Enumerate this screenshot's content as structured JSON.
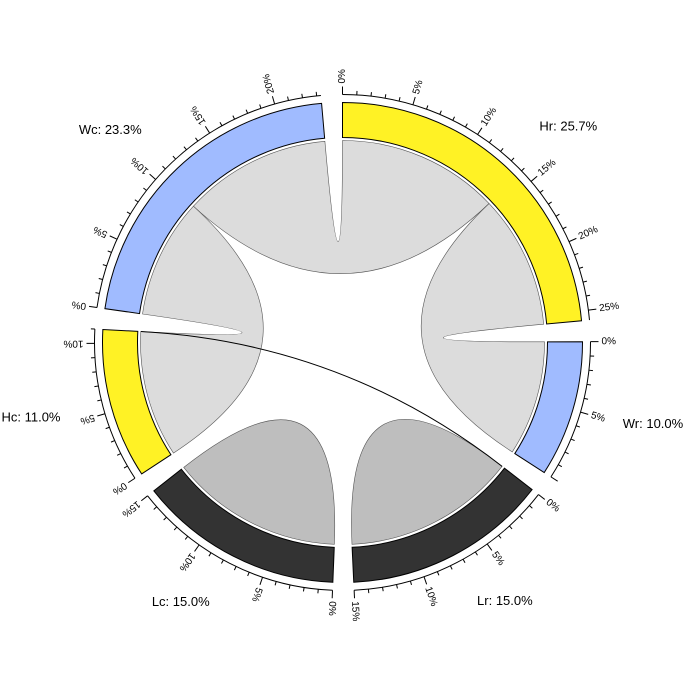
{
  "chart_data": {
    "type": "chord",
    "title": "",
    "sectors": [
      {
        "id": "Hr",
        "label": "Hr: 25.7%",
        "value": 25.7,
        "color": "#FFF225",
        "tick_max": 25
      },
      {
        "id": "Wr",
        "label": "Wr: 10.0%",
        "value": 10.0,
        "color": "#A0BBFF",
        "tick_max": 5
      },
      {
        "id": "Lr",
        "label": "Lr: 15.0%",
        "value": 15.0,
        "color": "#333333",
        "tick_max": 15
      },
      {
        "id": "Lc",
        "label": "Lc: 15.0%",
        "value": 15.0,
        "color": "#333333",
        "tick_max": 15
      },
      {
        "id": "Hc",
        "label": "Hc: 11.0%",
        "value": 11.0,
        "color": "#FFF225",
        "tick_max": 10
      },
      {
        "id": "Wc",
        "label": "Wc: 23.3%",
        "value": 23.3,
        "color": "#A0BBFF",
        "tick_max": 20
      }
    ],
    "links": [
      {
        "from": "Hr",
        "from_range": [
          0,
          14.1
        ],
        "to": "Wc",
        "to_range": [
          10.4,
          23.3
        ],
        "color": "#DCDCDC"
      },
      {
        "from": "Hr",
        "from_range": [
          14.1,
          25.7
        ],
        "to": "Wr",
        "to_range": [
          0,
          10.0
        ],
        "color": "#DCDCDC"
      },
      {
        "from": "Wc",
        "from_range": [
          0,
          10.4
        ],
        "to": "Hc",
        "to_range": [
          0,
          11.0
        ],
        "color": "#DCDCDC"
      },
      {
        "from": "Lr",
        "from_range": [
          0,
          15.0
        ],
        "to": "Lr",
        "to_range": [
          0,
          15.0
        ],
        "color": "#BEBEBE"
      },
      {
        "from": "Lc",
        "from_range": [
          0,
          15.0
        ],
        "to": "Lc",
        "to_range": [
          0,
          15.0
        ],
        "color": "#BEBEBE"
      },
      {
        "from": "Hc",
        "from_range": [
          11.0,
          11.0
        ],
        "to": "Lr",
        "to_range": [
          0,
          0
        ],
        "color": "#000000"
      }
    ],
    "tick_unit": "%",
    "tick_major_step": 5,
    "tick_minor_step": 1
  }
}
